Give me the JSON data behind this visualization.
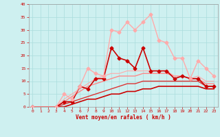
{
  "xlabel": "Vent moyen/en rafales ( km/h )",
  "background_color": "#cef0f0",
  "grid_color": "#aadddd",
  "xlim": [
    -0.5,
    23.5
  ],
  "ylim": [
    0,
    40
  ],
  "xticks": [
    0,
    1,
    2,
    3,
    4,
    5,
    6,
    7,
    8,
    9,
    10,
    11,
    12,
    13,
    14,
    15,
    16,
    17,
    18,
    19,
    20,
    21,
    22,
    23
  ],
  "yticks": [
    0,
    5,
    10,
    15,
    20,
    25,
    30,
    35,
    40
  ],
  "series": [
    {
      "x": [
        0,
        1,
        2,
        3,
        4,
        5,
        6,
        7,
        8,
        9,
        10,
        11,
        12,
        13,
        14,
        15,
        16,
        17,
        18,
        19,
        20,
        21,
        22,
        23
      ],
      "y": [
        0,
        0,
        0,
        0,
        0,
        1,
        2,
        3,
        3,
        4,
        5,
        5,
        6,
        6,
        7,
        7,
        8,
        8,
        8,
        8,
        8,
        8,
        7,
        7
      ],
      "color": "#cc0000",
      "linewidth": 1.2,
      "marker": null,
      "markersize": 0,
      "zorder": 3
    },
    {
      "x": [
        0,
        1,
        2,
        3,
        4,
        5,
        6,
        7,
        8,
        9,
        10,
        11,
        12,
        13,
        14,
        15,
        16,
        17,
        18,
        19,
        20,
        21,
        22,
        23
      ],
      "y": [
        0,
        0,
        0,
        0,
        1,
        2,
        3,
        4,
        5,
        6,
        7,
        8,
        9,
        9,
        10,
        10,
        10,
        10,
        10,
        10,
        10,
        10,
        8,
        8
      ],
      "color": "#dd3333",
      "linewidth": 1.0,
      "marker": null,
      "markersize": 0,
      "zorder": 3
    },
    {
      "x": [
        0,
        1,
        2,
        3,
        4,
        5,
        6,
        7,
        8,
        9,
        10,
        11,
        12,
        13,
        14,
        15,
        16,
        17,
        18,
        19,
        20,
        21,
        22,
        23
      ],
      "y": [
        0,
        0,
        0,
        0,
        2,
        4,
        6,
        8,
        9,
        10,
        11,
        12,
        12,
        12,
        13,
        13,
        13,
        13,
        12,
        12,
        11,
        11,
        9,
        9
      ],
      "color": "#ff8888",
      "linewidth": 1.0,
      "marker": null,
      "markersize": 0,
      "zorder": 2
    },
    {
      "x": [
        0,
        1,
        2,
        3,
        4,
        5,
        6,
        7,
        8,
        9,
        10,
        11,
        12,
        13,
        14,
        15,
        16,
        17,
        18,
        19,
        20,
        21,
        22,
        23
      ],
      "y": [
        0,
        0,
        0,
        0,
        3,
        5,
        7,
        9,
        11,
        12,
        13,
        13,
        14,
        14,
        14,
        14,
        14,
        14,
        12,
        12,
        11,
        12,
        10,
        10
      ],
      "color": "#ffaaaa",
      "linewidth": 0.8,
      "marker": null,
      "markersize": 0,
      "zorder": 2
    },
    {
      "x": [
        0,
        3,
        4,
        5,
        6,
        7,
        8,
        9,
        10,
        11,
        12,
        13,
        14,
        15,
        16,
        17,
        18,
        19,
        20,
        21,
        22,
        23
      ],
      "y": [
        0,
        0,
        2,
        2,
        8,
        7,
        11,
        11,
        23,
        19,
        18,
        15,
        23,
        14,
        14,
        14,
        11,
        12,
        11,
        11,
        8,
        8
      ],
      "color": "#cc0000",
      "linewidth": 1.2,
      "marker": "D",
      "markersize": 2.5,
      "zorder": 4
    },
    {
      "x": [
        0,
        3,
        4,
        5,
        6,
        7,
        8,
        9,
        10,
        11,
        12,
        13,
        14,
        15,
        16,
        17,
        18,
        19,
        20,
        21,
        22,
        23
      ],
      "y": [
        0,
        0,
        5,
        3,
        8,
        15,
        13,
        12,
        30,
        29,
        33,
        30,
        33,
        36,
        26,
        25,
        19,
        19,
        11,
        18,
        15,
        12
      ],
      "color": "#ffaaaa",
      "linewidth": 1.0,
      "marker": "D",
      "markersize": 2.5,
      "zorder": 4
    }
  ]
}
